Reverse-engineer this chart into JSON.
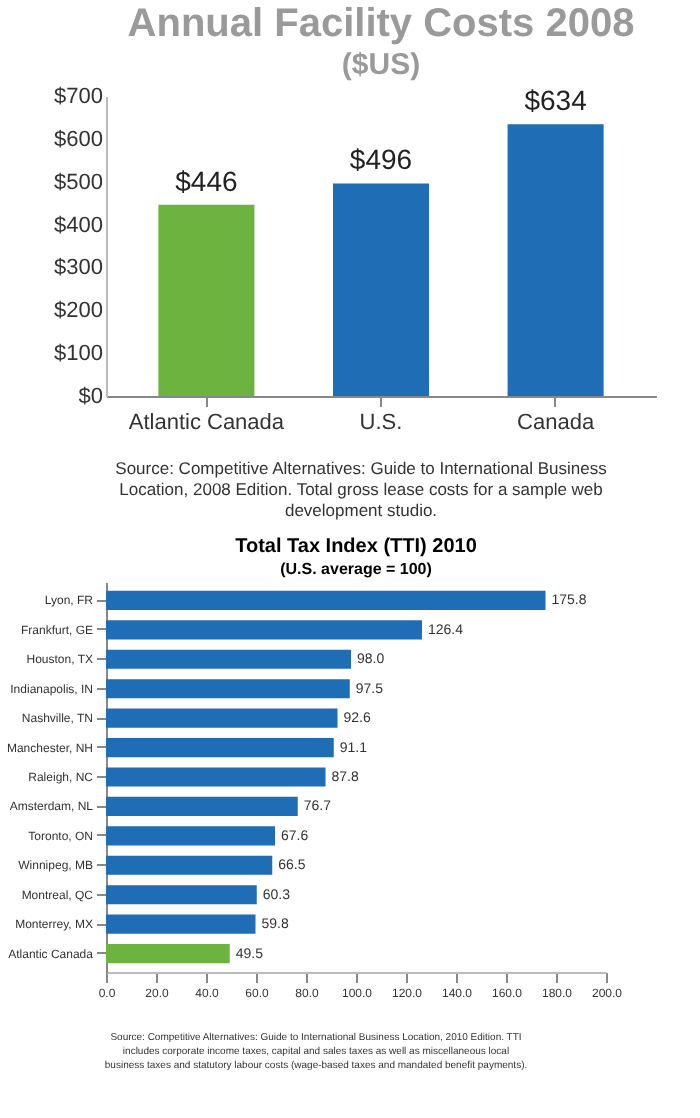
{
  "chart_data": [
    {
      "type": "bar",
      "title": "Annual Facility Costs 2008",
      "subtitle": "($US)",
      "categories": [
        "Atlantic Canada",
        "U.S.",
        "Canada"
      ],
      "values": [
        446,
        496,
        634
      ],
      "colors": [
        "#6db33f",
        "#1f6db5",
        "#1f6db5"
      ],
      "value_labels": [
        "$446",
        "$496",
        "$634"
      ],
      "ylim": [
        0,
        700
      ],
      "yticks": [
        {
          "value": 0,
          "label": "$0"
        },
        {
          "value": 100,
          "label": "$100"
        },
        {
          "value": 200,
          "label": "$200"
        },
        {
          "value": 300,
          "label": "$300"
        },
        {
          "value": 400,
          "label": "$400"
        },
        {
          "value": 500,
          "label": "$500"
        },
        {
          "value": 600,
          "label": "$600"
        },
        {
          "value": 700,
          "label": "$700"
        }
      ],
      "grid": false,
      "annotations": [
        "Source: Competitive Alternatives: Guide to International Business Location, 2008 Edition. Total gross lease costs for a sample web development studio."
      ]
    },
    {
      "type": "bar",
      "orientation": "horizontal",
      "title": "Total Tax Index (TTI) 2010",
      "subtitle": "(U.S. average = 100)",
      "categories": [
        "Lyon, FR",
        "Frankfurt, GE",
        "Houston, TX",
        "Indianapolis, IN",
        "Nashville, TN",
        "Manchester, NH",
        "Raleigh, NC",
        "Amsterdam, NL",
        "Toronto, ON",
        "Winnipeg, MB",
        "Montreal, QC",
        "Monterrey, MX",
        "Atlantic Canada"
      ],
      "values": [
        175.8,
        126.4,
        98.0,
        97.5,
        92.6,
        91.1,
        87.8,
        76.7,
        67.6,
        66.5,
        60.3,
        59.8,
        49.5
      ],
      "colors": [
        "#1f6db5",
        "#1f6db5",
        "#1f6db5",
        "#1f6db5",
        "#1f6db5",
        "#1f6db5",
        "#1f6db5",
        "#1f6db5",
        "#1f6db5",
        "#1f6db5",
        "#1f6db5",
        "#1f6db5",
        "#6db33f"
      ],
      "value_labels": [
        "175.8",
        "126.4",
        "98.0",
        "97.5",
        "92.6",
        "91.1",
        "87.8",
        "76.7",
        "67.6",
        "66.5",
        "60.3",
        "59.8",
        "49.5"
      ],
      "xlim": [
        0,
        200
      ],
      "xticks": [
        {
          "value": 0,
          "label": "0.0"
        },
        {
          "value": 20,
          "label": "20.0"
        },
        {
          "value": 40,
          "label": "40.0"
        },
        {
          "value": 60,
          "label": "60.0"
        },
        {
          "value": 80,
          "label": "80.0"
        },
        {
          "value": 100,
          "label": "100.0"
        },
        {
          "value": 120,
          "label": "120.0"
        },
        {
          "value": 140,
          "label": "140.0"
        },
        {
          "value": 160,
          "label": "160.0"
        },
        {
          "value": 180,
          "label": "180.0"
        },
        {
          "value": 200,
          "label": "200.0"
        }
      ],
      "grid": false,
      "annotations": [
        "Source: Competitive Alternatives: Guide to International Business Location, 2010 Edition. TTI includes corporate income taxes, capital and sales taxes as well as miscellaneous local business taxes and statutory labour costs (wage-based taxes and mandated benefit payments)."
      ]
    }
  ]
}
